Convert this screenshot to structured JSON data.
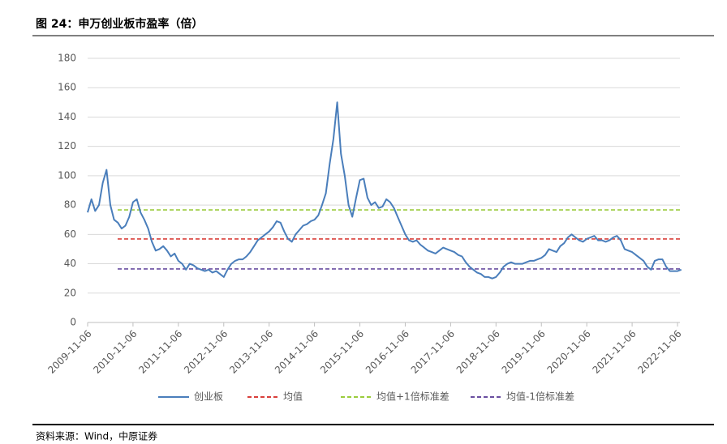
{
  "header": {
    "title": "图 24：申万创业板市盈率（倍）"
  },
  "chart_data": {
    "type": "line",
    "categories": [
      "2009-11-06",
      null,
      null,
      null,
      null,
      null,
      null,
      null,
      null,
      null,
      null,
      null,
      "2010-11-06",
      null,
      null,
      null,
      null,
      null,
      null,
      null,
      null,
      null,
      null,
      null,
      "2011-11-06",
      null,
      null,
      null,
      null,
      null,
      null,
      null,
      null,
      null,
      null,
      null,
      "2012-11-06",
      null,
      null,
      null,
      null,
      null,
      null,
      null,
      null,
      null,
      null,
      null,
      "2013-11-06",
      null,
      null,
      null,
      null,
      null,
      null,
      null,
      null,
      null,
      null,
      null,
      "2014-11-06",
      null,
      null,
      null,
      null,
      null,
      null,
      null,
      null,
      null,
      null,
      null,
      "2015-11-06",
      null,
      null,
      null,
      null,
      null,
      null,
      null,
      null,
      null,
      null,
      null,
      "2016-11-06",
      null,
      null,
      null,
      null,
      null,
      null,
      null,
      null,
      null,
      null,
      null,
      "2017-11-06",
      null,
      null,
      null,
      null,
      null,
      null,
      null,
      null,
      null,
      null,
      null,
      "2018-11-06",
      null,
      null,
      null,
      null,
      null,
      null,
      null,
      null,
      null,
      null,
      null,
      "2019-11-06",
      null,
      null,
      null,
      null,
      null,
      null,
      null,
      null,
      null,
      null,
      null,
      "2020-11-06",
      null,
      null,
      null,
      null,
      null,
      null,
      null,
      null,
      null,
      null,
      null,
      "2021-11-06",
      null,
      null,
      null,
      null,
      null,
      null,
      null,
      null,
      null,
      null,
      null,
      "2022-11-06",
      null
    ],
    "series": [
      {
        "name": "创业板",
        "color": "#4a7ebb",
        "values": [
          75,
          84,
          76,
          80,
          95,
          104,
          80,
          70,
          68,
          64,
          66,
          72,
          82,
          84,
          75,
          70,
          64,
          55,
          49,
          50,
          52,
          49,
          45,
          47,
          42,
          40,
          36,
          40,
          39,
          37,
          36,
          35,
          36,
          34,
          35,
          33,
          31,
          36,
          40,
          42,
          43,
          43,
          45,
          48,
          52,
          56,
          58,
          60,
          62,
          65,
          69,
          68,
          62,
          57,
          55,
          60,
          63,
          66,
          67,
          69,
          70,
          73,
          80,
          88,
          108,
          125,
          150,
          115,
          100,
          80,
          72,
          85,
          97,
          98,
          85,
          80,
          82,
          78,
          79,
          84,
          82,
          78,
          72,
          66,
          60,
          56,
          55,
          56,
          53,
          51,
          49,
          48,
          47,
          49,
          51,
          50,
          49,
          48,
          46,
          45,
          41,
          38,
          36,
          34,
          33,
          31,
          31,
          30,
          31,
          34,
          38,
          40,
          41,
          40,
          40,
          40,
          41,
          42,
          42,
          43,
          44,
          46,
          50,
          49,
          48,
          52,
          54,
          58,
          60,
          58,
          56,
          55,
          57,
          58,
          59,
          56,
          56,
          55,
          56,
          58,
          59,
          56,
          50,
          49,
          48,
          46,
          44,
          42,
          38,
          36,
          42,
          43,
          43,
          38,
          35,
          35,
          35,
          36
        ]
      }
    ],
    "reference_lines": [
      {
        "name": "均值",
        "color": "#d9403b",
        "value": 56.9
      },
      {
        "name": "均值+1倍标准差",
        "color": "#9bcc3c",
        "value": 76.7
      },
      {
        "name": "均值-1倍标准差",
        "color": "#6a4fa0",
        "value": 36.5
      }
    ],
    "ylim": [
      0,
      180
    ],
    "yticks": [
      0,
      20,
      40,
      60,
      80,
      100,
      120,
      140,
      160,
      180
    ],
    "grid": true
  },
  "footer": {
    "source": "资料来源：Wind，中原证券"
  }
}
